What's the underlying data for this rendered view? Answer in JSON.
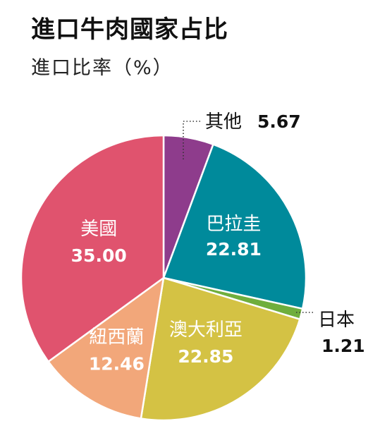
{
  "title": "進口牛肉國家占比",
  "subtitle": "進口比率（%）",
  "chart_data": {
    "type": "pie",
    "title": "進口牛肉國家占比",
    "subtitle": "進口比率（%）",
    "unit": "%",
    "start_angle_deg": 0,
    "direction": "clockwise",
    "slices": [
      {
        "name": "其他",
        "value": 5.67,
        "value_label": "5.67",
        "color": "#8E3C8C",
        "label_position": "outside"
      },
      {
        "name": "巴拉圭",
        "value": 22.81,
        "value_label": "22.81",
        "color": "#008A9B",
        "label_position": "inside"
      },
      {
        "name": "日本",
        "value": 1.21,
        "value_label": "1.21",
        "color": "#6FAE3D",
        "label_position": "outside"
      },
      {
        "name": "澳大利亞",
        "value": 22.85,
        "value_label": "22.85",
        "color": "#D4C244",
        "label_position": "inside"
      },
      {
        "name": "紐西蘭",
        "value": 12.46,
        "value_label": "12.46",
        "color": "#F2A77A",
        "label_position": "inside"
      },
      {
        "name": "美國",
        "value": 35.0,
        "value_label": "35.00",
        "color": "#E0536E",
        "label_position": "inside"
      }
    ]
  }
}
